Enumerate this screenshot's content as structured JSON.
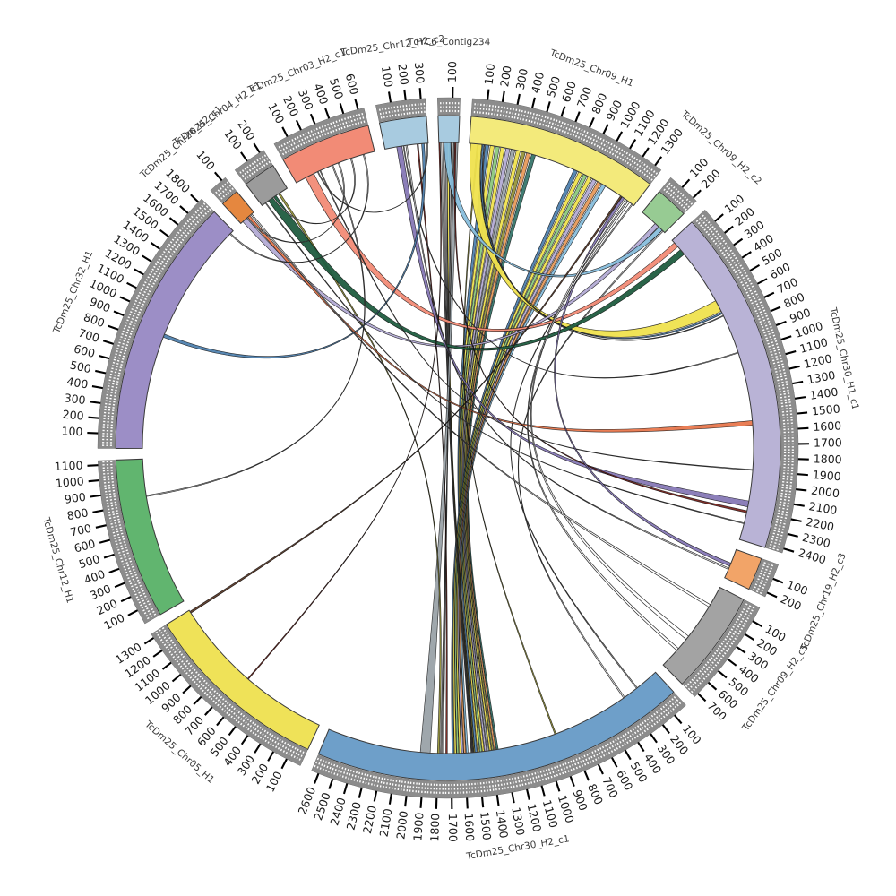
{
  "figure": {
    "background": "#ffffff",
    "kind": "circos-synteny-plot"
  },
  "chart_data": {
    "type": "circos",
    "title": "",
    "units_per_major_tick": 100,
    "units_per_minor_tick": 20,
    "start_deg": -86,
    "gap_deg": 2,
    "ring_color": "#8C8C8C",
    "segments": [
      {
        "id": "chr09_h1",
        "label": "TcDm25_Chr09_H1",
        "length": 1350,
        "max_tick": 1300,
        "color": "#F3EA7B"
      },
      {
        "id": "chr09_h2_c2",
        "label": "TcDm25_Chr09_H2_c2",
        "length": 230,
        "max_tick": 200,
        "color": "#97CB93"
      },
      {
        "id": "chr30_h1_c1",
        "label": "TcDm25_Chr30_H1_c1",
        "length": 2430,
        "max_tick": 2400,
        "color": "#B9B3D6"
      },
      {
        "id": "chr19_h2_c3",
        "label": "TcDm25_Chr19_H2_c3",
        "length": 230,
        "max_tick": 200,
        "color": "#F2A468"
      },
      {
        "id": "chr09_h2_c5",
        "label": "TcDm25_Chr09_H2_c5",
        "length": 730,
        "max_tick": 700,
        "color": "#A3A3A3"
      },
      {
        "id": "chr30_h2_c1",
        "label": "TcDm25_Chr30_H2_c1",
        "length": 2650,
        "max_tick": 2600,
        "color": "#6E9FC9"
      },
      {
        "id": "chr05_h1",
        "label": "TcDm25_Chr05_H1",
        "length": 1330,
        "max_tick": 1300,
        "color": "#EFE258"
      },
      {
        "id": "chr12_h1",
        "label": "TcDm25_Chr12_H1",
        "length": 1130,
        "max_tick": 1100,
        "color": "#61B56F"
      },
      {
        "id": "chr32_h1",
        "label": "TcDm25_Chr32_H1",
        "length": 1830,
        "max_tick": 1800,
        "color": "#9C8EC6"
      },
      {
        "id": "chr26_h2_c1",
        "label": "TcDm25_Chr26_H2_c1",
        "length": 130,
        "max_tick": 100,
        "color": "#E5873F"
      },
      {
        "id": "chr04_h2_c1",
        "label": "TcDm25_Chr04_H2_c1",
        "length": 230,
        "max_tick": 200,
        "color": "#9B9B9B"
      },
      {
        "id": "chr03_h2_c1",
        "label": "TcDm25_Chr03_H2_c1",
        "length": 640,
        "max_tick": 600,
        "color": "#F28B76"
      },
      {
        "id": "chr12_h2_c2",
        "label": "TcDm25_Chr12_H2_c2",
        "length": 330,
        "max_tick": 300,
        "color": "#A8CBE0"
      },
      {
        "id": "tqyc6",
        "label": "TqYC6_Contig234",
        "length": 150,
        "max_tick": 100,
        "color": "#A8CBE0"
      }
    ],
    "links": [
      {
        "s": "chr09_h1",
        "s1": 120,
        "s2": 150,
        "t": "chr30_h2_c1",
        "t1": 1505,
        "t2": 1520,
        "c": "#4F81AE"
      },
      {
        "s": "chr09_h1",
        "s1": 160,
        "s2": 190,
        "t": "chr30_h2_c1",
        "t1": 1487,
        "t2": 1500,
        "c": "#EFE24E"
      },
      {
        "s": "chr09_h1",
        "s1": 200,
        "s2": 230,
        "t": "chr30_h2_c1",
        "t1": 1469,
        "t2": 1482,
        "c": "#8CC87C"
      },
      {
        "s": "chr09_h1",
        "s1": 240,
        "s2": 270,
        "t": "chr30_h2_c1",
        "t1": 1451,
        "t2": 1464,
        "c": "#EFE24E"
      },
      {
        "s": "chr09_h1",
        "s1": 280,
        "s2": 310,
        "t": "chr30_h2_c1",
        "t1": 1433,
        "t2": 1446,
        "c": "#B3ABD4"
      },
      {
        "s": "chr09_h1",
        "s1": 320,
        "s2": 350,
        "t": "chr30_h2_c1",
        "t1": 1415,
        "t2": 1428,
        "c": "#9AA2A8"
      },
      {
        "s": "chr09_h1",
        "s1": 360,
        "s2": 390,
        "t": "chr30_h2_c1",
        "t1": 1397,
        "t2": 1410,
        "c": "#EFE24E"
      },
      {
        "s": "chr09_h1",
        "s1": 400,
        "s2": 430,
        "t": "chr30_h2_c1",
        "t1": 1379,
        "t2": 1392,
        "c": "#97953B"
      },
      {
        "s": "chr09_h1",
        "s1": 440,
        "s2": 470,
        "t": "chr30_h2_c1",
        "t1": 1361,
        "t2": 1374,
        "c": "#E79A5B"
      },
      {
        "s": "chr09_h1",
        "s1": 480,
        "s2": 510,
        "t": "chr30_h2_c1",
        "t1": 1343,
        "t2": 1356,
        "c": "#37766B"
      },
      {
        "s": "chr09_h1",
        "s1": 820,
        "s2": 850,
        "t": "chr30_h2_c1",
        "t1": 1680,
        "t2": 1695,
        "c": "#4F81AE"
      },
      {
        "s": "chr09_h1",
        "s1": 860,
        "s2": 890,
        "t": "chr30_h2_c1",
        "t1": 1662,
        "t2": 1676,
        "c": "#EFE24E"
      },
      {
        "s": "chr09_h1",
        "s1": 900,
        "s2": 930,
        "t": "chr30_h2_c1",
        "t1": 1644,
        "t2": 1658,
        "c": "#8CC87C"
      },
      {
        "s": "chr09_h1",
        "s1": 940,
        "s2": 970,
        "t": "chr30_h2_c1",
        "t1": 1626,
        "t2": 1640,
        "c": "#EFE24E"
      },
      {
        "s": "chr09_h1",
        "s1": 980,
        "s2": 1010,
        "t": "chr30_h2_c1",
        "t1": 1608,
        "t2": 1622,
        "c": "#B3ABD4"
      },
      {
        "s": "chr09_h1",
        "s1": 1020,
        "s2": 1050,
        "t": "chr30_h2_c1",
        "t1": 1590,
        "t2": 1604,
        "c": "#E79A5B"
      },
      {
        "s": "chr09_h1",
        "s1": 1060,
        "s2": 1090,
        "t": "chr30_h2_c1",
        "t1": 1572,
        "t2": 1586,
        "c": "#88BEDC"
      },
      {
        "s": "tqyc6",
        "s1": 10,
        "s2": 20,
        "t": "chr30_h2_c1",
        "t1": 1545,
        "t2": 1550,
        "c": "#FFFFFF",
        "thin": true
      },
      {
        "s": "tqyc6",
        "s1": 30,
        "s2": 40,
        "t": "chr30_h2_c1",
        "t1": 1537,
        "t2": 1542,
        "c": "#FFFFFF",
        "thin": true
      },
      {
        "s": "tqyc6",
        "s1": 50,
        "s2": 60,
        "t": "chr30_h2_c1",
        "t1": 1530,
        "t2": 1535,
        "c": "#FFFFFF",
        "thin": true
      },
      {
        "s": "tqyc6",
        "s1": 65,
        "s2": 80,
        "t": "chr30_h2_c1",
        "t1": 1522,
        "t2": 1528,
        "c": "#EFE24E"
      },
      {
        "s": "tqyc6",
        "s1": 85,
        "s2": 95,
        "t": "chr30_h2_c1",
        "t1": 1760,
        "t2": 1768,
        "c": "#FFFFFF",
        "thin": true
      },
      {
        "s": "tqyc6",
        "s1": 100,
        "s2": 110,
        "t": "chr30_h2_c1",
        "t1": 1775,
        "t2": 1782,
        "c": "#FFFFFF",
        "thin": true
      },
      {
        "s": "tqyc6",
        "s1": 115,
        "s2": 145,
        "t": "chr30_h2_c1",
        "t1": 1860,
        "t2": 1935,
        "c": "#9AA2A8"
      },
      {
        "s": "chr12_h2_c2",
        "s1": 245,
        "s2": 255,
        "t": "chr30_h2_c1",
        "t1": 1730,
        "t2": 1742,
        "c": "#7A241E"
      },
      {
        "s": "chr04_h2_c1",
        "s1": 150,
        "s2": 165,
        "t": "chr30_h2_c1",
        "t1": 1790,
        "t2": 1805,
        "c": "#97953B"
      },
      {
        "s": "chr09_h1",
        "s1": 60,
        "s2": 70,
        "t": "chr30_h2_c1",
        "t1": 890,
        "t2": 900,
        "c": "#97953B"
      },
      {
        "s": "chr09_h2_c2",
        "s1": 205,
        "s2": 215,
        "t": "chr30_h2_c1",
        "t1": 300,
        "t2": 310,
        "c": "#FFFFFF",
        "thin": true
      },
      {
        "s": "chr09_h1",
        "s1": 1330,
        "s2": 1338,
        "t": "chr30_h2_c1",
        "t1": 180,
        "t2": 188,
        "c": "#FFFFFF",
        "thin": true
      },
      {
        "s": "chr09_h1",
        "s1": 10,
        "s2": 95,
        "t": "chr30_h1_c1",
        "t1": 565,
        "t2": 655,
        "c": "#EFE24E"
      },
      {
        "s": "chr09_h1",
        "s1": 100,
        "s2": 112,
        "t": "chr30_h1_c1",
        "t1": 663,
        "t2": 676,
        "c": "#4F81AE"
      },
      {
        "s": "chr09_h1",
        "s1": 116,
        "s2": 122,
        "t": "chr30_h1_c1",
        "t1": 690,
        "t2": 696,
        "c": "#FFFFFF",
        "thin": true
      },
      {
        "s": "chr26_h2_c1",
        "s1": 20,
        "s2": 60,
        "t": "chr09_h2_c2",
        "t1": 130,
        "t2": 165,
        "c": "#B3ABD4"
      },
      {
        "s": "tqyc6",
        "s1": 40,
        "s2": 90,
        "t": "chr09_h2_c2",
        "t1": 170,
        "t2": 205,
        "c": "#88BEDC"
      },
      {
        "s": "chr03_h2_c1",
        "s1": 80,
        "s2": 150,
        "t": "chr30_h1_c1",
        "t1": 25,
        "t2": 65,
        "c": "#F28B76"
      },
      {
        "s": "chr04_h2_c1",
        "s1": 60,
        "s2": 130,
        "t": "chr30_h1_c1",
        "t1": 95,
        "t2": 140,
        "c": "#1F5C3F"
      },
      {
        "s": "chr26_h2_c1",
        "s1": 70,
        "s2": 90,
        "t": "chr30_h1_c1",
        "t1": 1520,
        "t2": 1555,
        "c": "#E8774D"
      },
      {
        "s": "chr12_h2_c2",
        "s1": 90,
        "s2": 130,
        "t": "chr30_h1_c1",
        "t1": 2130,
        "t2": 2175,
        "c": "#8678B5"
      },
      {
        "s": "tqyc6",
        "s1": 120,
        "s2": 130,
        "t": "chr30_h1_c1",
        "t1": 2205,
        "t2": 2220,
        "c": "#7A241E"
      },
      {
        "s": "chr12_h2_c2",
        "s1": 140,
        "s2": 146,
        "t": "chr30_h1_c1",
        "t1": 990,
        "t2": 996,
        "c": "#FFFFFF",
        "thin": true
      },
      {
        "s": "chr03_h2_c1",
        "s1": 200,
        "s2": 206,
        "t": "chr30_h1_c1",
        "t1": 1890,
        "t2": 1896,
        "c": "#FFFFFF",
        "thin": true
      },
      {
        "s": "chr04_h2_c1",
        "s1": 30,
        "s2": 36,
        "t": "chr30_h1_c1",
        "t1": 2300,
        "t2": 2306,
        "c": "#FFFFFF",
        "thin": true
      },
      {
        "s": "chr09_h1",
        "s1": 1240,
        "s2": 1260,
        "t": "chr19_h2_c3",
        "t1": 110,
        "t2": 135,
        "c": "#8678B5"
      },
      {
        "s": "chr12_h2_c2",
        "s1": 160,
        "s2": 170,
        "t": "chr19_h2_c3",
        "t1": 150,
        "t2": 160,
        "c": "#FFFFFF",
        "thin": true
      },
      {
        "s": "chr09_h1",
        "s1": 1270,
        "s2": 1285,
        "t": "chr09_h2_c5",
        "t1": 440,
        "t2": 470,
        "c": "#FFFFFF",
        "thin": true
      },
      {
        "s": "chr09_h1",
        "s1": 1295,
        "s2": 1310,
        "t": "chr09_h2_c5",
        "t1": 560,
        "t2": 580,
        "c": "#FFFFFF",
        "thin": true
      },
      {
        "s": "chr26_h2_c1",
        "s1": 100,
        "s2": 110,
        "t": "chr09_h2_c5",
        "t1": 150,
        "t2": 170,
        "c": "#FFFFFF",
        "thin": true
      },
      {
        "s": "chr12_h2_c2",
        "s1": 280,
        "s2": 300,
        "t": "chr32_h1",
        "t1": 860,
        "t2": 885,
        "c": "#4F81AE"
      },
      {
        "s": "chr03_h2_c1",
        "s1": 300,
        "s2": 308,
        "t": "chr12_h1",
        "t1": 845,
        "t2": 853,
        "c": "#FFFFFF",
        "thin": true
      },
      {
        "s": "chr09_h1",
        "s1": 1225,
        "s2": 1238,
        "t": "chr05_h1",
        "t1": 1305,
        "t2": 1320,
        "c": "#5C3A28"
      },
      {
        "s": "tqyc6",
        "s1": 0,
        "s2": 8,
        "t": "chr05_h1",
        "t1": 640,
        "t2": 648,
        "c": "#7A241E"
      },
      {
        "s": "chr03_h2_c1",
        "s1": 350,
        "s2": 358,
        "t": "chr26_h2_c1",
        "t1": 60,
        "t2": 68,
        "c": "#FFFFFF",
        "thin": true
      },
      {
        "s": "chr03_h2_c1",
        "s1": 450,
        "s2": 458,
        "t": "chr04_h2_c1",
        "t1": 100,
        "t2": 108,
        "c": "#FFFFFF",
        "thin": true
      },
      {
        "s": "chr03_h2_c1",
        "s1": 550,
        "s2": 558,
        "t": "chr32_h1",
        "t1": 1795,
        "t2": 1803,
        "c": "#FFFFFF",
        "thin": true
      },
      {
        "s": "chr12_h2_c2",
        "s1": 320,
        "s2": 326,
        "t": "chr03_h2_c1",
        "t1": 180,
        "t2": 186,
        "c": "#FFFFFF",
        "thin": true
      }
    ]
  }
}
